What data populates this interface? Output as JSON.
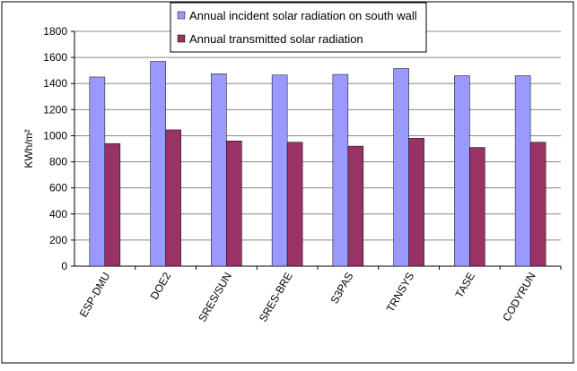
{
  "chart_data": {
    "type": "bar",
    "y_label": "KWh/m²",
    "categories": [
      "ESP-DMU",
      "DOE2",
      "SRES/SUN",
      "SRES-BRE",
      "S3PAS",
      "TRNSYS",
      "TASE",
      "CODYRUN"
    ],
    "series": [
      {
        "name": "Annual incident solar radiation on south wall",
        "color": "#9999ff",
        "values": [
          1450,
          1570,
          1475,
          1465,
          1470,
          1515,
          1460,
          1460
        ]
      },
      {
        "name": "Annual transmitted solar radiation",
        "color": "#993366",
        "values": [
          940,
          1045,
          960,
          950,
          920,
          980,
          910,
          950
        ]
      }
    ],
    "ylim": [
      0,
      1800
    ],
    "yticks": [
      0,
      200,
      400,
      600,
      800,
      1000,
      1200,
      1400,
      1600,
      1800
    ],
    "grid": true
  }
}
